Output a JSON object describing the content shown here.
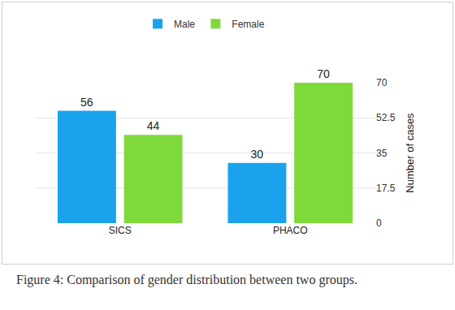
{
  "chart_data": {
    "type": "bar",
    "categories": [
      "SICS",
      "PHACO"
    ],
    "series": [
      {
        "name": "Male",
        "color": "#1aa3ec",
        "values": [
          56,
          30
        ]
      },
      {
        "name": "Female",
        "color": "#7ed93a",
        "values": [
          44,
          70
        ]
      }
    ],
    "y_label": "Number of cases",
    "ylim": [
      0,
      70
    ],
    "yticks": [
      0,
      17.5,
      35,
      52.5,
      70
    ],
    "grid": true,
    "legend": "top",
    "data_labels": true,
    "annotations": [
      "Figure 4: Comparison of gender distribution between two groups."
    ]
  }
}
